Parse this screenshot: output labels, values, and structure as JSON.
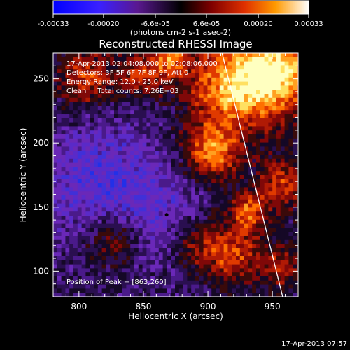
{
  "chart_data": {
    "type": "heatmap",
    "title": "Reconstructed RHESSI Image",
    "xlabel": "Heliocentric X (arcsec)",
    "ylabel": "Heliocentric Y (arcsec)",
    "xlim": [
      780,
      970
    ],
    "ylim": [
      80,
      270
    ],
    "xticks": [
      800,
      850,
      900,
      950
    ],
    "yticks": [
      100,
      150,
      200,
      250
    ],
    "colorbar": {
      "min": -0.00033,
      "max": 0.00033,
      "tick_labels": [
        "-0.00033",
        "-0.00020",
        "-6.6e-05",
        "6.6e-05",
        "0.00020",
        "0.00033"
      ],
      "unit_label": "(photons cm-2 s-1 asec-2)",
      "colors": [
        "#0000ff",
        "#5a20e0",
        "#2a0f50",
        "#000000",
        "#7a0000",
        "#e03000",
        "#ff9000",
        "#ffff80",
        "#ffffff"
      ]
    },
    "annotations": [
      "17-Apr-2013 02:04:08.000 to 02:08:06.000",
      "Detectors: 3F 5F 6F 7F 8F 9F, Att 0",
      "Energy Range: 12.0 - 25.0 keV",
      "Clean     Total counts: 7.26E+03",
      "Position of Peak = [863,260]"
    ],
    "limb_line": {
      "x": [
        911,
        958
      ],
      "y": [
        270,
        80
      ]
    },
    "marker": {
      "x": 868,
      "y": 144
    },
    "footer_timestamp": "17-Apr-2013 07:57"
  }
}
